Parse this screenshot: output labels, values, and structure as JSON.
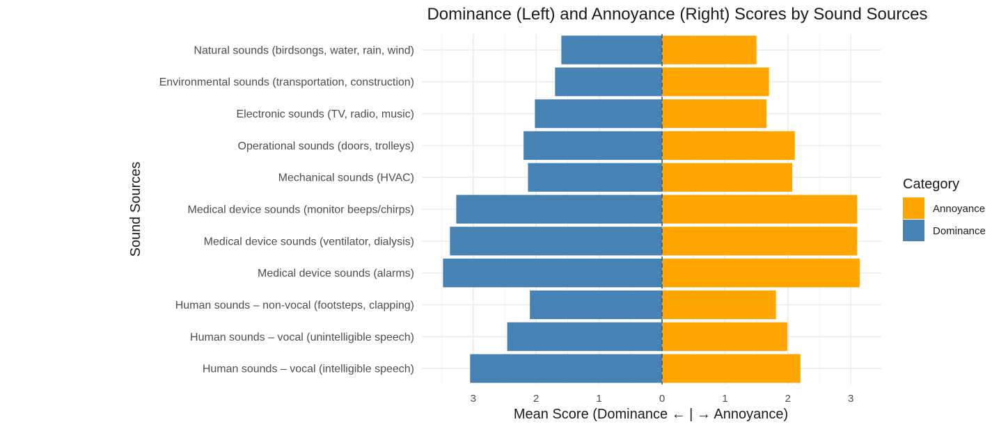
{
  "chart_data": {
    "type": "bar",
    "orientation": "horizontal-diverging",
    "title": "Dominance (Left) and Annoyance (Right) Scores by Sound Sources",
    "xlabel": "Mean Score (Dominance ← | → Annoyance)",
    "ylabel": "Sound Sources",
    "categories": [
      "Natural sounds (birdsongs, water, rain, wind)",
      "Environmental sounds (transportation, construction)",
      "Electronic sounds (TV, radio, music)",
      "Operational sounds (doors, trolleys)",
      "Mechanical sounds (HVAC)",
      "Medical device sounds (monitor beeps/chirps)",
      "Medical device sounds (ventilator, dialysis)",
      "Medical device sounds (alarms)",
      "Human sounds – non-vocal (footsteps, clapping)",
      "Human sounds – vocal (unintelligible speech)",
      "Human sounds – vocal (intelligible speech)"
    ],
    "series": [
      {
        "name": "Annoyance",
        "color": "#FFA500",
        "values": [
          1.5,
          1.7,
          1.66,
          2.11,
          2.07,
          3.1,
          3.1,
          3.14,
          1.81,
          1.99,
          2.2
        ]
      },
      {
        "name": "Dominance",
        "color": "#4682B4",
        "values": [
          1.6,
          1.7,
          2.02,
          2.2,
          2.13,
          3.27,
          3.37,
          3.48,
          2.1,
          2.46,
          3.05
        ]
      }
    ],
    "xlim": [
      -3.48,
      3.48
    ],
    "x_ticks": [
      {
        "value": -3,
        "label": "3"
      },
      {
        "value": -2,
        "label": "2"
      },
      {
        "value": -1,
        "label": "1"
      },
      {
        "value": 0,
        "label": "0"
      },
      {
        "value": 1,
        "label": "1"
      },
      {
        "value": 2,
        "label": "2"
      },
      {
        "value": 3,
        "label": "3"
      }
    ],
    "zero_line": "dashed",
    "grid": true,
    "legend": {
      "title": "Category",
      "position": "right",
      "items": [
        "Annoyance",
        "Dominance"
      ]
    }
  }
}
